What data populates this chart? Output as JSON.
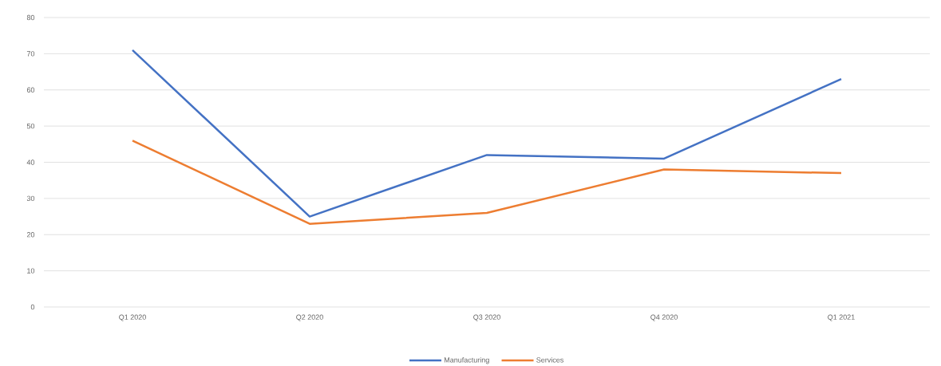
{
  "chart_data": {
    "type": "line",
    "categories": [
      "Q1 2020",
      "Q2 2020",
      "Q3 2020",
      "Q4 2020",
      "Q1 2021"
    ],
    "series": [
      {
        "name": "Manufacturing",
        "color": "#4472c4",
        "values": [
          71,
          25,
          42,
          41,
          63
        ]
      },
      {
        "name": "Services",
        "color": "#ed7d31",
        "values": [
          46,
          23,
          26,
          38,
          37
        ]
      }
    ],
    "ylim": [
      0,
      80
    ],
    "yticks": [
      0,
      10,
      20,
      30,
      40,
      50,
      60,
      70,
      80
    ],
    "grid": "y",
    "legend": "bottom",
    "marker": "none",
    "line_style": "solid"
  }
}
